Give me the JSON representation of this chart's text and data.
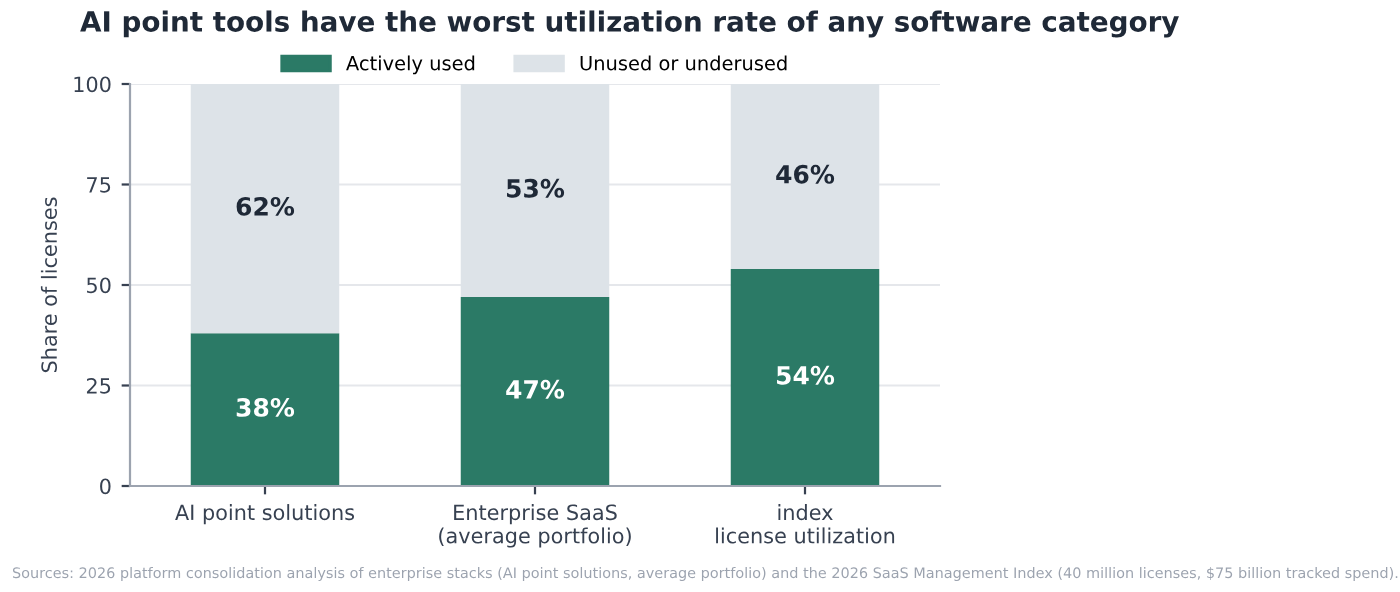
{
  "chart_data": {
    "type": "bar",
    "stacked": true,
    "title": "AI point tools have the worst utilization rate of any software category",
    "ylabel": "Share of licenses",
    "categories": [
      "AI point solutions",
      "Enterprise SaaS\n(average portfolio)",
      "index\nlicense utilization"
    ],
    "series": [
      {
        "name": "Actively used",
        "color": "#2b7a66",
        "values": [
          38,
          47,
          54
        ],
        "value_labels": [
          "38%",
          "47%",
          "54%"
        ]
      },
      {
        "name": "Unused or underused",
        "color": "#dde3e8",
        "values": [
          62,
          53,
          46
        ],
        "value_labels": [
          "62%",
          "53%",
          "46%"
        ]
      }
    ],
    "ylim": [
      0,
      100
    ],
    "yticks": [
      0,
      25,
      50,
      75,
      100
    ],
    "grid": "y",
    "legend": "top",
    "annotations": [
      "Sources: 2026 platform consolidation analysis of enterprise stacks (AI point solutions, average portfolio) and the 2026 SaaS Management Index (40 million licenses, $75 billion tracked spend)."
    ]
  }
}
